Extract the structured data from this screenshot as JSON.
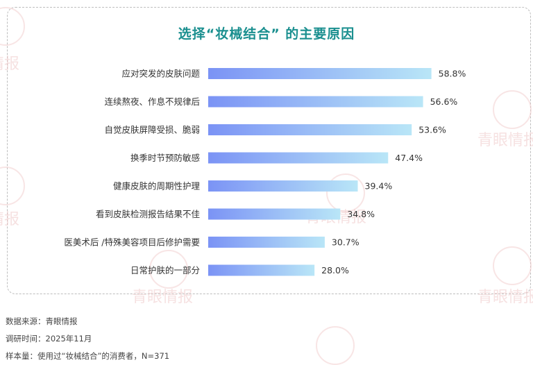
{
  "title": "选择“妆械结合” 的主要原因",
  "chart_data": {
    "type": "bar",
    "orientation": "horizontal",
    "categories": [
      "应对突发的皮肤问题",
      "连续熬夜、作息不规律后",
      "自觉皮肤屏障受损、脆弱",
      "换季时节预防敏感",
      "健康皮肤的周期性护理",
      "看到皮肤检测报告结果不佳",
      "医美术后 /特殊美容项目后修护需要",
      "日常护肤的一部分"
    ],
    "values": [
      58.8,
      56.6,
      53.6,
      47.4,
      39.4,
      34.8,
      30.7,
      28.0
    ],
    "value_labels": [
      "58.8%",
      "56.6%",
      "53.6%",
      "47.4%",
      "39.4%",
      "34.8%",
      "30.7%",
      "28.0%"
    ],
    "xlim": [
      0,
      100
    ],
    "grid": false,
    "colors": {
      "bar_start": "#7b93f5",
      "bar_end": "#b9e6f7",
      "title": "#1a8f8f"
    }
  },
  "footer": {
    "source": "数据来源：青眼情报",
    "date": "调研时间：2025年11月",
    "sample": "样本量：使用过“妆械结合”的消费者，N=371"
  },
  "watermark": {
    "text": "青眼情报"
  }
}
